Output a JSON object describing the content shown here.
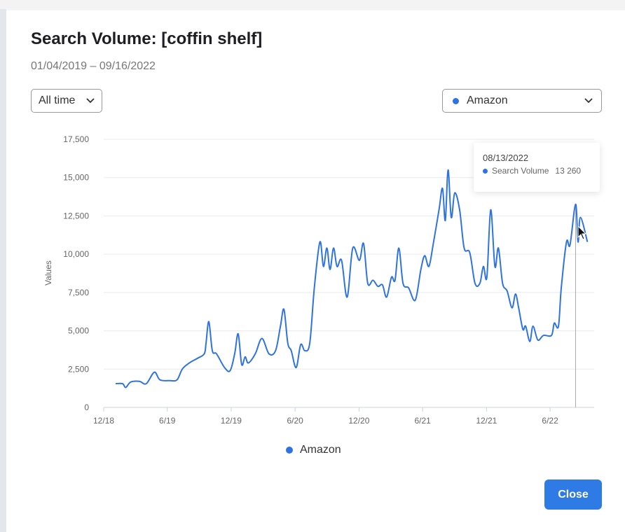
{
  "modal": {
    "title": "Search Volume: [coffin shelf]",
    "date_range": "01/04/2019 – 09/16/2022",
    "time_filter": "All time",
    "series_filter": "Amazon",
    "close_label": "Close"
  },
  "colors": {
    "accent": "#2f73e0",
    "button": "#2f7be5"
  },
  "tooltip": {
    "date": "08/13/2022",
    "label": "Search Volume",
    "value": "13 260"
  },
  "chart_data": {
    "type": "line",
    "ylabel": "Values",
    "xlabel": "",
    "ylim": [
      0,
      17500
    ],
    "yticks": [
      0,
      2500,
      5000,
      7500,
      10000,
      12500,
      15000,
      17500
    ],
    "ytick_labels": [
      "0",
      "2,500",
      "5,000",
      "7,500",
      "10,000",
      "12,500",
      "15,000",
      "17,500"
    ],
    "xticks": [
      "2018-12-01",
      "2019-06-01",
      "2019-12-01",
      "2020-06-01",
      "2020-12-01",
      "2021-06-01",
      "2021-12-01",
      "2022-06-01"
    ],
    "xtick_labels": [
      "12/18",
      "6/19",
      "12/19",
      "6/20",
      "12/20",
      "6/21",
      "12/21",
      "6/22"
    ],
    "grid": true,
    "legend": "bottom",
    "series": [
      {
        "name": "Amazon",
        "color": "#2f73e0",
        "points": [
          [
            "2019-01-04",
            1550
          ],
          [
            "2019-01-24",
            1550
          ],
          [
            "2019-02-02",
            1300
          ],
          [
            "2019-02-16",
            1650
          ],
          [
            "2019-03-13",
            1700
          ],
          [
            "2019-04-02",
            1550
          ],
          [
            "2019-04-25",
            2300
          ],
          [
            "2019-05-11",
            1800
          ],
          [
            "2019-06-09",
            1750
          ],
          [
            "2019-06-29",
            1800
          ],
          [
            "2019-07-14",
            2500
          ],
          [
            "2019-08-03",
            2900
          ],
          [
            "2019-08-26",
            3200
          ],
          [
            "2019-09-15",
            3500
          ],
          [
            "2019-09-20",
            4200
          ],
          [
            "2019-09-28",
            5600
          ],
          [
            "2019-10-08",
            3700
          ],
          [
            "2019-10-20",
            3500
          ],
          [
            "2019-11-12",
            2600
          ],
          [
            "2019-11-28",
            2400
          ],
          [
            "2019-12-11",
            3500
          ],
          [
            "2019-12-21",
            4800
          ],
          [
            "2019-12-31",
            2800
          ],
          [
            "2020-01-10",
            3300
          ],
          [
            "2020-01-19",
            2900
          ],
          [
            "2020-02-08",
            3500
          ],
          [
            "2020-02-27",
            4500
          ],
          [
            "2020-03-18",
            3500
          ],
          [
            "2020-04-06",
            3700
          ],
          [
            "2020-04-20",
            5300
          ],
          [
            "2020-04-30",
            6400
          ],
          [
            "2020-05-11",
            4200
          ],
          [
            "2020-05-21",
            3700
          ],
          [
            "2020-06-04",
            2600
          ],
          [
            "2020-06-17",
            4100
          ],
          [
            "2020-06-29",
            3700
          ],
          [
            "2020-07-13",
            4200
          ],
          [
            "2020-07-26",
            7800
          ],
          [
            "2020-08-11",
            10800
          ],
          [
            "2020-08-21",
            9200
          ],
          [
            "2020-08-31",
            10400
          ],
          [
            "2020-09-09",
            9000
          ],
          [
            "2020-09-19",
            10400
          ],
          [
            "2020-09-29",
            9200
          ],
          [
            "2020-10-12",
            9600
          ],
          [
            "2020-10-28",
            7200
          ],
          [
            "2020-11-13",
            10400
          ],
          [
            "2020-12-02",
            9600
          ],
          [
            "2020-12-14",
            10700
          ],
          [
            "2020-12-26",
            8100
          ],
          [
            "2021-01-10",
            8300
          ],
          [
            "2021-01-24",
            7900
          ],
          [
            "2021-02-06",
            8000
          ],
          [
            "2021-02-18",
            7200
          ],
          [
            "2021-03-04",
            8500
          ],
          [
            "2021-03-14",
            8300
          ],
          [
            "2021-03-25",
            10400
          ],
          [
            "2021-04-06",
            8100
          ],
          [
            "2021-04-22",
            7800
          ],
          [
            "2021-05-11",
            7000
          ],
          [
            "2021-05-27",
            9000
          ],
          [
            "2021-06-07",
            9900
          ],
          [
            "2021-06-19",
            9200
          ],
          [
            "2021-07-01",
            10600
          ],
          [
            "2021-07-18",
            12900
          ],
          [
            "2021-07-28",
            14300
          ],
          [
            "2021-08-05",
            12200
          ],
          [
            "2021-08-13",
            15500
          ],
          [
            "2021-08-22",
            12400
          ],
          [
            "2021-09-01",
            14000
          ],
          [
            "2021-09-15",
            12900
          ],
          [
            "2021-09-28",
            10400
          ],
          [
            "2021-10-14",
            10100
          ],
          [
            "2021-10-29",
            8100
          ],
          [
            "2021-11-12",
            8100
          ],
          [
            "2021-11-22",
            9200
          ],
          [
            "2021-12-02",
            8500
          ],
          [
            "2021-12-13",
            12900
          ],
          [
            "2021-12-25",
            9200
          ],
          [
            "2022-01-04",
            10400
          ],
          [
            "2022-01-16",
            8100
          ],
          [
            "2022-01-29",
            7600
          ],
          [
            "2022-02-12",
            6500
          ],
          [
            "2022-02-22",
            7400
          ],
          [
            "2022-03-03",
            6500
          ],
          [
            "2022-03-15",
            5100
          ],
          [
            "2022-03-23",
            5300
          ],
          [
            "2022-04-04",
            4300
          ],
          [
            "2022-04-13",
            5300
          ],
          [
            "2022-04-27",
            4400
          ],
          [
            "2022-05-13",
            4700
          ],
          [
            "2022-06-05",
            4700
          ],
          [
            "2022-06-13",
            5500
          ],
          [
            "2022-06-25",
            5300
          ],
          [
            "2022-07-03",
            7800
          ],
          [
            "2022-07-18",
            10800
          ],
          [
            "2022-07-28",
            10600
          ],
          [
            "2022-08-13",
            13260
          ],
          [
            "2022-08-20",
            10800
          ],
          [
            "2022-08-27",
            12400
          ],
          [
            "2022-09-16",
            10800
          ]
        ]
      }
    ],
    "highlight": {
      "date": "2022-08-13",
      "value": 13260
    }
  }
}
